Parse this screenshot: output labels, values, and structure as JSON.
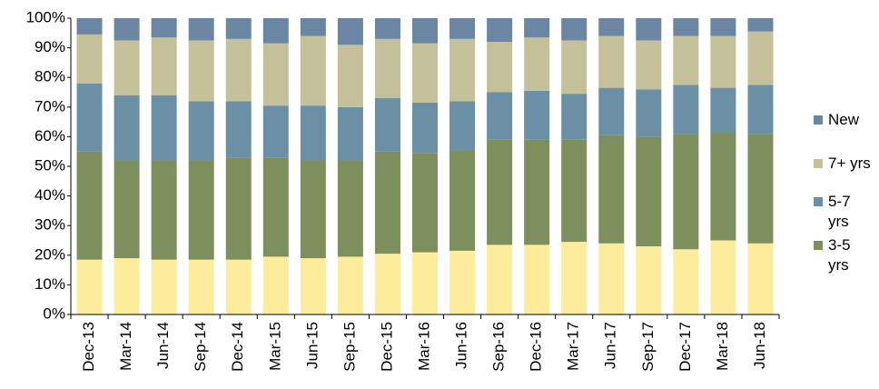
{
  "chart_data": {
    "type": "stacked_bar",
    "categories": [
      "Dec-13",
      "Mar-14",
      "Jun-14",
      "Sep-14",
      "Dec-14",
      "Mar-15",
      "Jun-15",
      "Sep-15",
      "Dec-15",
      "Mar-16",
      "Jun-16",
      "Sep-16",
      "Dec-16",
      "Mar-17",
      "Jun-17",
      "Sep-17",
      "Dec-17",
      "Mar-18",
      "Jun-18"
    ],
    "series": [
      {
        "color": "#fcec9c",
        "values": [
          18.5,
          19,
          18.5,
          18.5,
          18.5,
          19.5,
          19,
          19.5,
          20.5,
          21,
          21.5,
          23.5,
          23.5,
          24.5,
          24,
          23,
          22,
          25,
          24
        ]
      },
      {
        "name": "3-5 yrs",
        "color": "#7d8f5d",
        "values": [
          36.5,
          33,
          33.5,
          33.5,
          34.5,
          33.5,
          33,
          32.5,
          34.5,
          33.5,
          34,
          35.5,
          35.5,
          34.5,
          36.5,
          37,
          39,
          36.5,
          37
        ]
      },
      {
        "name": "5-7 yrs",
        "color": "#6b8fa5",
        "values": [
          23,
          22,
          22,
          20,
          19,
          17.5,
          18.5,
          18,
          18,
          17,
          16.5,
          16,
          16.5,
          15.5,
          16,
          16,
          16.5,
          15,
          16.5
        ]
      },
      {
        "name": "7+ yrs",
        "color": "#c3c09a",
        "values": [
          16.5,
          18.5,
          19.5,
          20.5,
          21,
          21,
          23.5,
          21,
          20,
          20,
          21,
          17,
          18,
          18,
          17.5,
          16.5,
          16.5,
          17.5,
          18
        ]
      },
      {
        "name": "New",
        "color": "#6a86a2",
        "values": [
          5.5,
          7.5,
          6.5,
          7.5,
          7,
          8.5,
          6,
          9,
          7,
          8.5,
          7,
          8,
          6.5,
          7.5,
          6,
          7.5,
          6,
          6,
          4.5
        ]
      }
    ],
    "ylim": [
      0,
      100
    ],
    "yticks": [
      {
        "value": 0,
        "label": "0%"
      },
      {
        "value": 10,
        "label": "10%"
      },
      {
        "value": 20,
        "label": "20%"
      },
      {
        "value": 30,
        "label": "30%"
      },
      {
        "value": 40,
        "label": "40%"
      },
      {
        "value": 50,
        "label": "50%"
      },
      {
        "value": 60,
        "label": "60%"
      },
      {
        "value": 70,
        "label": "70%"
      },
      {
        "value": 80,
        "label": "80%"
      },
      {
        "value": 90,
        "label": "90%"
      },
      {
        "value": 100,
        "label": "100%"
      }
    ],
    "legend": "right"
  }
}
